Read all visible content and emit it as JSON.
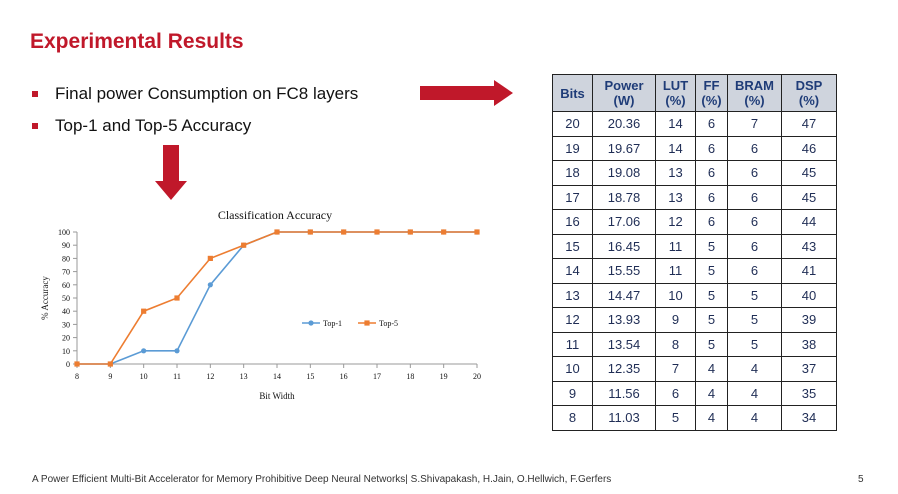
{
  "slide": {
    "title": "Experimental Results",
    "bullets": [
      "Final power Consumption on FC8 layers",
      "Top-1 and Top-5 Accuracy"
    ],
    "footer": "A Power Efficient Multi-Bit Accelerator for Memory Prohibitive Deep Neural Networks| S.Shivapakash, H.Jain, O.Hellwich, F.Gerfers",
    "page_number": "5",
    "accent_color": "#c0182a"
  },
  "table": {
    "headers": [
      [
        "Bits"
      ],
      [
        "Power",
        "(W)"
      ],
      [
        "LUT",
        "(%)"
      ],
      [
        "FF",
        "(%)"
      ],
      [
        "BRAM",
        "(%)"
      ],
      [
        "DSP",
        "(%)"
      ]
    ],
    "rows": [
      [
        "20",
        "20.36",
        "14",
        "6",
        "7",
        "47"
      ],
      [
        "19",
        "19.67",
        "14",
        "6",
        "6",
        "46"
      ],
      [
        "18",
        "19.08",
        "13",
        "6",
        "6",
        "45"
      ],
      [
        "17",
        "18.78",
        "13",
        "6",
        "6",
        "45"
      ],
      [
        "16",
        "17.06",
        "12",
        "6",
        "6",
        "44"
      ],
      [
        "15",
        "16.45",
        "11",
        "5",
        "6",
        "43"
      ],
      [
        "14",
        "15.55",
        "11",
        "5",
        "6",
        "41"
      ],
      [
        "13",
        "14.47",
        "10",
        "5",
        "5",
        "40"
      ],
      [
        "12",
        "13.93",
        "9",
        "5",
        "5",
        "39"
      ],
      [
        "11",
        "13.54",
        "8",
        "5",
        "5",
        "38"
      ],
      [
        "10",
        "12.35",
        "7",
        "4",
        "4",
        "37"
      ],
      [
        "9",
        "11.56",
        "6",
        "4",
        "4",
        "35"
      ],
      [
        "8",
        "11.03",
        "5",
        "4",
        "4",
        "34"
      ]
    ]
  },
  "chart_data": {
    "type": "line",
    "title": "Classification Accuracy",
    "xlabel": "Bit Width",
    "ylabel": "% Accuracy",
    "x": [
      8,
      9,
      10,
      11,
      12,
      13,
      14,
      15,
      16,
      17,
      18,
      19,
      20
    ],
    "xlim": [
      8,
      20
    ],
    "ylim": [
      0,
      100
    ],
    "yticks": [
      0,
      10,
      20,
      30,
      40,
      50,
      60,
      70,
      80,
      90,
      100
    ],
    "grid": false,
    "legend_position": "right-center",
    "series": [
      {
        "name": "Top-1",
        "color": "#5b9bd5",
        "marker": "circle",
        "values": [
          0,
          0,
          10,
          10,
          60,
          90,
          100,
          100,
          100,
          100,
          100,
          100,
          100
        ]
      },
      {
        "name": "Top-5",
        "color": "#ed7d31",
        "marker": "square",
        "values": [
          0,
          0,
          40,
          50,
          80,
          90,
          100,
          100,
          100,
          100,
          100,
          100,
          100
        ]
      }
    ]
  }
}
